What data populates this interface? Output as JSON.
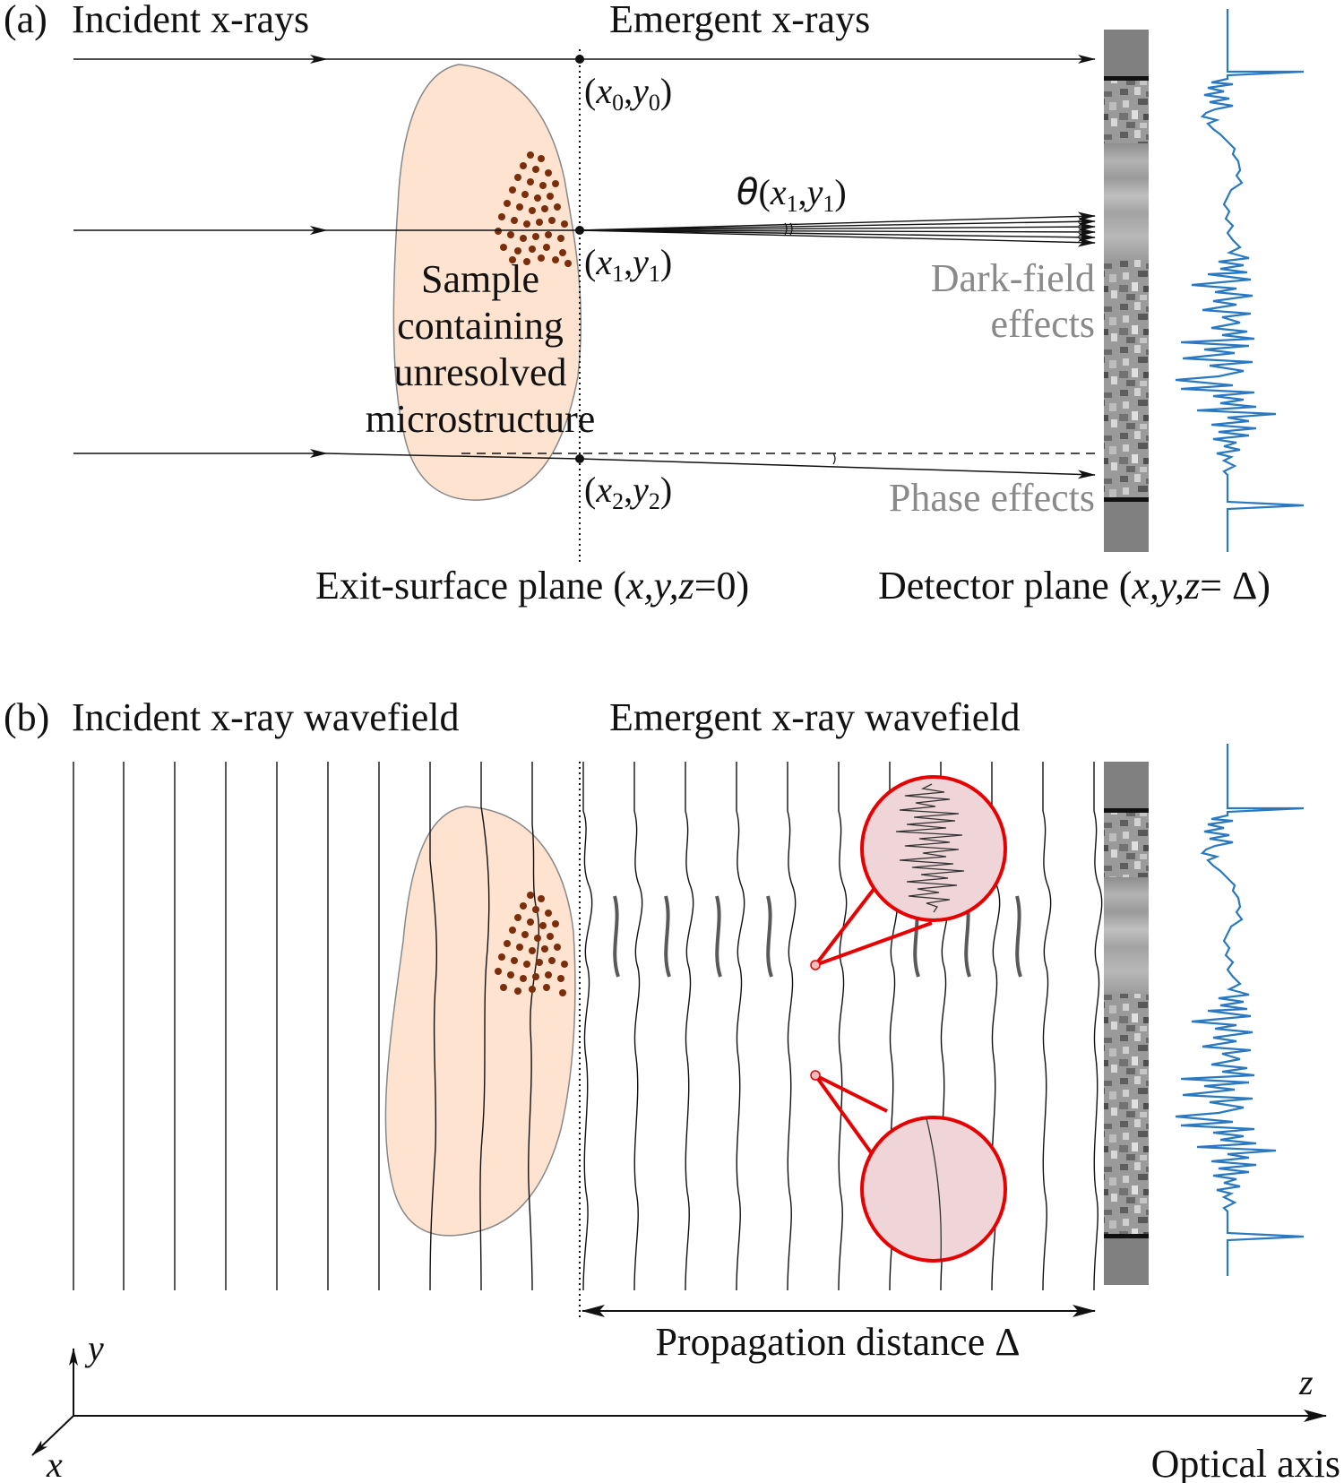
{
  "panel_a": {
    "letter": "(a)",
    "incident": "Incident x-rays",
    "emergent": "Emergent x-rays",
    "coord0": {
      "x": "x",
      "xs": "0",
      "y": "y",
      "ys": "0"
    },
    "coord1": {
      "x": "x",
      "xs": "1",
      "y": "y",
      "ys": "1"
    },
    "coord2": {
      "x": "x",
      "xs": "2",
      "y": "y",
      "ys": "2"
    },
    "theta": "θ",
    "theta_args": {
      "x": "x",
      "xs": "1",
      "y": "y",
      "ys": "1"
    },
    "sample_lines": [
      "Sample",
      "containing",
      "unresolved",
      "microstructure"
    ],
    "darkfield_lines": [
      "Dark-field",
      "effects"
    ],
    "phase": "Phase effects",
    "exit_plane": {
      "prefix": "Exit-surface plane (",
      "vars": "x,y,z",
      "suffix": "=0)"
    },
    "detector_plane": {
      "prefix": "Detector plane (",
      "vars": "x,y,z",
      "suffix": "= Δ)"
    }
  },
  "panel_b": {
    "letter": "(b)",
    "incident": "Incident x-ray wavefield",
    "emergent": "Emergent x-ray wavefield",
    "propagation": "Propagation distance Δ"
  },
  "axes": {
    "y": "y",
    "z": "z",
    "x": "x",
    "optical": "Optical axis"
  },
  "colors": {
    "sample_fill": "#fde3d0",
    "particle": "#7b2e0b",
    "profile": "#2a78c0",
    "magnifier": "#e60000",
    "magnifier_fill": "#f0d5d8",
    "detector": "#808080"
  }
}
